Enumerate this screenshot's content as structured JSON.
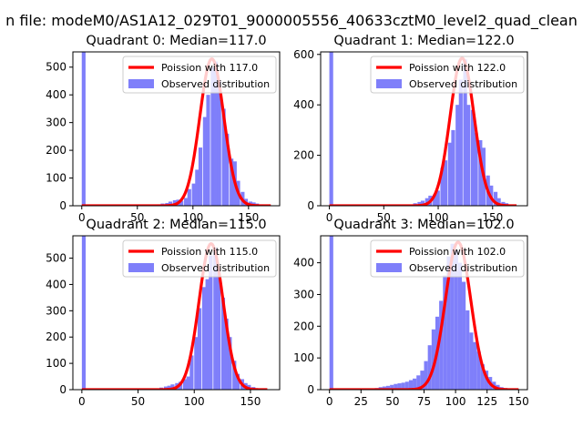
{
  "figure": {
    "suptitle": "n file: modeM0/AS1A12_029T01_9000005556_40633cztM0_level2_quad_clean"
  },
  "colors": {
    "bar": "#7f7ffa",
    "poisson_line": "#ff0000",
    "axis": "#000000",
    "background": "#ffffff"
  },
  "chart_data": [
    {
      "type": "bar",
      "title": "Quadrant 0: Median=117.0",
      "xlabel": "",
      "ylabel": "",
      "xlim": [
        -8,
        178
      ],
      "ylim": [
        0,
        555
      ],
      "xticks": [
        0,
        50,
        100,
        150
      ],
      "yticks": [
        0,
        100,
        200,
        300,
        400,
        500
      ],
      "legend": {
        "location": "upper-right",
        "line_label": "Poission with 117.0",
        "bar_label": "Observed distribution"
      },
      "bin_width": 3.4,
      "bars": {
        "x": [
          0,
          64,
          68,
          71,
          75,
          78,
          82,
          85,
          88,
          92,
          95,
          99,
          102,
          105,
          109,
          112,
          116,
          119,
          122,
          126,
          129,
          133,
          136,
          139,
          143,
          146,
          150,
          153,
          156,
          160,
          163,
          167
        ],
        "values": [
          560,
          3,
          5,
          8,
          10,
          15,
          20,
          22,
          18,
          28,
          60,
          80,
          130,
          210,
          320,
          400,
          500,
          520,
          450,
          350,
          260,
          170,
          160,
          90,
          50,
          25,
          15,
          12,
          8,
          5,
          3,
          2
        ]
      },
      "poisson": {
        "mean": 117.0,
        "x_range": [
          0,
          170
        ],
        "peak": 530
      }
    },
    {
      "type": "bar",
      "title": "Quadrant 1: Median=122.0",
      "xlabel": "",
      "ylabel": "",
      "xlim": [
        -8,
        182
      ],
      "ylim": [
        0,
        610
      ],
      "xticks": [
        0,
        50,
        100,
        150
      ],
      "yticks": [
        0,
        200,
        400,
        600
      ],
      "legend": {
        "location": "upper-right",
        "line_label": "Poission with 122.0",
        "bar_label": "Observed distribution"
      },
      "bin_width": 3.5,
      "bars": {
        "x": [
          0,
          70,
          74,
          77,
          81,
          84,
          88,
          91,
          95,
          98,
          102,
          105,
          109,
          112,
          116,
          119,
          123,
          126,
          130,
          133,
          137,
          140,
          144,
          147,
          151,
          154,
          158,
          161,
          165,
          168
        ],
        "values": [
          615,
          3,
          5,
          10,
          15,
          20,
          30,
          40,
          45,
          60,
          150,
          180,
          250,
          300,
          400,
          500,
          580,
          400,
          380,
          290,
          260,
          230,
          120,
          80,
          55,
          30,
          15,
          10,
          5,
          3
        ]
      },
      "poisson": {
        "mean": 122.0,
        "x_range": [
          0,
          172
        ],
        "peak": 585
      }
    },
    {
      "type": "bar",
      "title": "Quadrant 2: Median=115.0",
      "xlabel": "",
      "ylabel": "",
      "xlim": [
        -8,
        176
      ],
      "ylim": [
        0,
        585
      ],
      "xticks": [
        0,
        50,
        100,
        150
      ],
      "yticks": [
        0,
        100,
        200,
        300,
        400,
        500
      ],
      "legend": {
        "location": "upper-right",
        "line_label": "Poission with 115.0",
        "bar_label": "Observed distribution"
      },
      "bin_width": 3.4,
      "bars": {
        "x": [
          0,
          62,
          66,
          69,
          73,
          76,
          79,
          83,
          86,
          90,
          93,
          96,
          100,
          103,
          107,
          110,
          113,
          117,
          120,
          124,
          127,
          130,
          134,
          137,
          141,
          144,
          147,
          151,
          154,
          158
        ],
        "values": [
          590,
          3,
          5,
          8,
          12,
          15,
          20,
          25,
          30,
          40,
          50,
          130,
          200,
          310,
          390,
          420,
          510,
          540,
          450,
          350,
          270,
          200,
          110,
          60,
          40,
          25,
          18,
          10,
          5,
          3
        ]
      },
      "poisson": {
        "mean": 115.0,
        "x_range": [
          0,
          165
        ],
        "peak": 555
      }
    },
    {
      "type": "bar",
      "title": "Quadrant 3: Median=102.0",
      "xlabel": "",
      "ylabel": "",
      "xlim": [
        -7,
        157
      ],
      "ylim": [
        0,
        485
      ],
      "xticks": [
        0,
        25,
        50,
        75,
        100,
        125,
        150
      ],
      "yticks": [
        0,
        100,
        200,
        300,
        400
      ],
      "legend": {
        "location": "upper-right",
        "line_label": "Poission with 102.0",
        "bar_label": "Observed distribution"
      },
      "bin_width": 3.0,
      "bars": {
        "x": [
          0,
          36,
          39,
          42,
          45,
          48,
          51,
          54,
          57,
          60,
          63,
          66,
          69,
          72,
          75,
          78,
          81,
          84,
          87,
          90,
          93,
          96,
          99,
          102,
          105,
          108,
          111,
          114,
          117,
          120,
          123,
          126,
          129,
          132,
          135,
          138,
          141
        ],
        "values": [
          490,
          5,
          8,
          10,
          12,
          15,
          18,
          20,
          22,
          25,
          30,
          35,
          45,
          60,
          90,
          140,
          190,
          230,
          280,
          360,
          420,
          460,
          440,
          400,
          340,
          250,
          180,
          150,
          120,
          80,
          60,
          40,
          25,
          15,
          8,
          5,
          3
        ]
      },
      "poisson": {
        "mean": 102.0,
        "x_range": [
          0,
          150
        ],
        "peak": 465
      }
    }
  ]
}
